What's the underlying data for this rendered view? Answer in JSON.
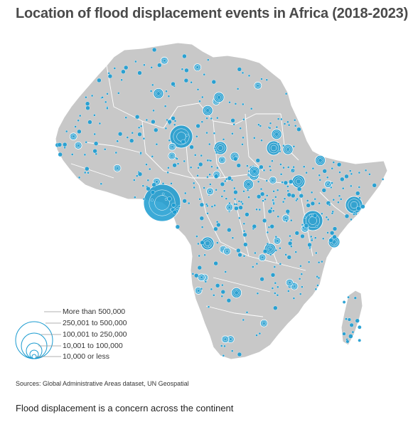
{
  "title": "Location of flood displacement events in Africa (2018-2023)",
  "legend": {
    "items": [
      {
        "label": "More than 500,000"
      },
      {
        "label": "250,001 to 500,000"
      },
      {
        "label": "100,001 to 250,000"
      },
      {
        "label": "10,001 to 100,000"
      },
      {
        "label": "10,000 or less"
      }
    ]
  },
  "source": "Sources: Global Administrative Areas dataset, UN Geospatial",
  "caption": "Flood displacement is a concern across the continent",
  "colors": {
    "land": "#c8c8c8",
    "borders": "#ffffff",
    "bubble_fill": "#1a9bd0",
    "bubble_stroke": "#ffffff",
    "title_text": "#4a4a4a"
  }
}
